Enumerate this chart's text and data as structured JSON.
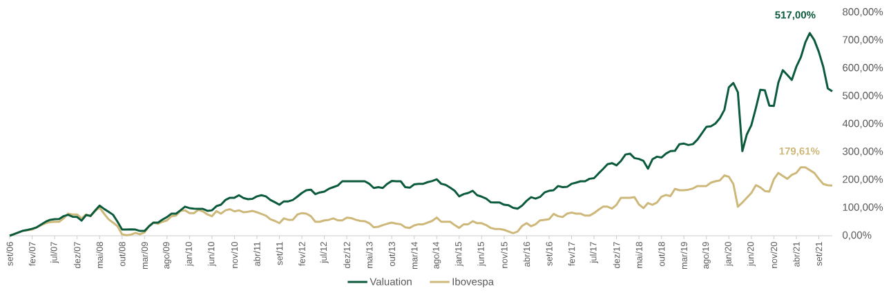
{
  "chart_data": {
    "type": "line",
    "x": [
      "2006-09",
      "2006-10",
      "2006-11",
      "2006-12",
      "2007-01",
      "2007-02",
      "2007-03",
      "2007-04",
      "2007-05",
      "2007-06",
      "2007-07",
      "2007-08",
      "2007-09",
      "2007-10",
      "2007-11",
      "2007-12",
      "2008-01",
      "2008-02",
      "2008-03",
      "2008-04",
      "2008-05",
      "2008-06",
      "2008-07",
      "2008-08",
      "2008-09",
      "2008-10",
      "2008-11",
      "2008-12",
      "2009-01",
      "2009-02",
      "2009-03",
      "2009-04",
      "2009-05",
      "2009-06",
      "2009-07",
      "2009-08",
      "2009-09",
      "2009-10",
      "2009-11",
      "2009-12",
      "2010-01",
      "2010-02",
      "2010-03",
      "2010-04",
      "2010-05",
      "2010-06",
      "2010-07",
      "2010-08",
      "2010-09",
      "2010-10",
      "2010-11",
      "2010-12",
      "2011-01",
      "2011-02",
      "2011-03",
      "2011-04",
      "2011-05",
      "2011-06",
      "2011-07",
      "2011-08",
      "2011-09",
      "2011-10",
      "2011-11",
      "2011-12",
      "2012-01",
      "2012-02",
      "2012-03",
      "2012-04",
      "2012-05",
      "2012-06",
      "2012-07",
      "2012-08",
      "2012-09",
      "2012-10",
      "2012-11",
      "2012-12",
      "2013-01",
      "2013-02",
      "2013-03",
      "2013-04",
      "2013-05",
      "2013-06",
      "2013-07",
      "2013-08",
      "2013-09",
      "2013-10",
      "2013-11",
      "2013-12",
      "2014-01",
      "2014-02",
      "2014-03",
      "2014-04",
      "2014-05",
      "2014-06",
      "2014-07",
      "2014-08",
      "2014-09",
      "2014-10",
      "2014-11",
      "2014-12",
      "2015-01",
      "2015-02",
      "2015-03",
      "2015-04",
      "2015-05",
      "2015-06",
      "2015-07",
      "2015-08",
      "2015-09",
      "2015-10",
      "2015-11",
      "2015-12",
      "2016-01",
      "2016-02",
      "2016-03",
      "2016-04",
      "2016-05",
      "2016-06",
      "2016-07",
      "2016-08",
      "2016-09",
      "2016-10",
      "2016-11",
      "2016-12",
      "2017-01",
      "2017-02",
      "2017-03",
      "2017-04",
      "2017-05",
      "2017-06",
      "2017-07",
      "2017-08",
      "2017-09",
      "2017-10",
      "2017-11",
      "2017-12",
      "2018-01",
      "2018-02",
      "2018-03",
      "2018-04",
      "2018-05",
      "2018-06",
      "2018-07",
      "2018-08",
      "2018-09",
      "2018-10",
      "2018-11",
      "2018-12",
      "2019-01",
      "2019-02",
      "2019-03",
      "2019-04",
      "2019-05",
      "2019-06",
      "2019-07",
      "2019-08",
      "2019-09",
      "2019-10",
      "2019-11",
      "2019-12",
      "2020-01",
      "2020-02",
      "2020-03",
      "2020-04",
      "2020-05",
      "2020-06",
      "2020-07",
      "2020-08",
      "2020-09",
      "2020-10",
      "2020-11",
      "2020-12",
      "2021-01",
      "2021-02",
      "2021-03",
      "2021-04",
      "2021-05",
      "2021-06",
      "2021-07",
      "2021-08",
      "2021-09",
      "2021-10",
      "2021-11",
      "2021-12"
    ],
    "series": [
      {
        "name": "Valuation",
        "color": "#0b5a3c",
        "values": [
          0,
          6,
          12,
          18,
          21,
          25,
          30,
          40,
          50,
          57,
          59,
          60,
          70,
          75,
          68,
          67,
          54,
          74,
          71,
          90,
          108,
          96,
          86,
          75,
          50,
          22,
          22,
          23,
          22,
          17,
          17,
          34,
          47,
          47,
          58,
          67,
          79,
          79,
          91,
          104,
          99,
          97,
          96,
          96,
          89,
          91,
          106,
          111,
          128,
          136,
          136,
          145,
          135,
          131,
          132,
          141,
          145,
          141,
          128,
          120,
          111,
          123,
          123,
          128,
          140,
          153,
          163,
          165,
          149,
          155,
          158,
          168,
          174,
          180,
          195,
          195,
          195,
          195,
          195,
          195,
          186,
          171,
          174,
          171,
          186,
          196,
          195,
          195,
          174,
          172,
          184,
          186,
          186,
          192,
          196,
          202,
          186,
          182,
          172,
          161,
          141,
          149,
          153,
          161,
          145,
          140,
          133,
          120,
          119,
          119,
          111,
          109,
          100,
          97,
          108,
          125,
          138,
          133,
          139,
          155,
          161,
          163,
          178,
          174,
          175,
          186,
          190,
          195,
          195,
          204,
          206,
          223,
          239,
          256,
          260,
          252,
          268,
          291,
          294,
          278,
          275,
          268,
          240,
          274,
          283,
          280,
          294,
          303,
          304,
          328,
          330,
          325,
          328,
          344,
          367,
          390,
          392,
          402,
          421,
          451,
          532,
          547,
          514,
          303,
          363,
          396,
          457,
          523,
          521,
          466,
          465,
          548,
          593,
          576,
          558,
          605,
          639,
          692,
          726,
          701,
          659,
          605,
          528,
          517
        ]
      },
      {
        "name": "Ibovespa",
        "color": "#cdb87a",
        "values": [
          0,
          6,
          12,
          18,
          20,
          22,
          30,
          38,
          45,
          49,
          50,
          50,
          62,
          79,
          76,
          76,
          62,
          76,
          70,
          89,
          101,
          79,
          59,
          47,
          34,
          5,
          2,
          4,
          10,
          5,
          12,
          34,
          47,
          43,
          50,
          55,
          70,
          72,
          89,
          91,
          81,
          81,
          93,
          87,
          76,
          70,
          88,
          79,
          91,
          95,
          87,
          91,
          84,
          86,
          89,
          84,
          78,
          72,
          59,
          53,
          45,
          62,
          57,
          57,
          76,
          81,
          79,
          70,
          50,
          50,
          55,
          57,
          62,
          55,
          55,
          65,
          63,
          57,
          53,
          52,
          45,
          30,
          32,
          38,
          43,
          47,
          43,
          41,
          30,
          28,
          37,
          41,
          41,
          47,
          53,
          65,
          50,
          50,
          50,
          38,
          28,
          41,
          41,
          52,
          45,
          45,
          38,
          28,
          24,
          24,
          21,
          15,
          9,
          15,
          35,
          45,
          34,
          41,
          55,
          57,
          59,
          78,
          70,
          67,
          79,
          83,
          79,
          79,
          72,
          72,
          81,
          93,
          104,
          104,
          97,
          111,
          136,
          136,
          136,
          138,
          112,
          99,
          117,
          111,
          119,
          140,
          146,
          142,
          168,
          163,
          163,
          165,
          169,
          178,
          178,
          178,
          190,
          195,
          198,
          216,
          211,
          185,
          104,
          119,
          136,
          153,
          181,
          173,
          160,
          158,
          202,
          225,
          214,
          204,
          218,
          225,
          245,
          245,
          235,
          225,
          204,
          185,
          181,
          179.61
        ]
      }
    ],
    "xlim": [
      "2006-09",
      "2021-12"
    ],
    "xticks": [
      {
        "value": "2006-09",
        "label": "set/06"
      },
      {
        "value": "2007-02",
        "label": "fev/07"
      },
      {
        "value": "2007-07",
        "label": "jul/07"
      },
      {
        "value": "2007-12",
        "label": "dez/07"
      },
      {
        "value": "2008-05",
        "label": "mai/08"
      },
      {
        "value": "2008-10",
        "label": "out/08"
      },
      {
        "value": "2009-03",
        "label": "mar/09"
      },
      {
        "value": "2009-08",
        "label": "ago/09"
      },
      {
        "value": "2010-01",
        "label": "jan/10"
      },
      {
        "value": "2010-06",
        "label": "jun/10"
      },
      {
        "value": "2010-11",
        "label": "nov/10"
      },
      {
        "value": "2011-04",
        "label": "abr/11"
      },
      {
        "value": "2011-09",
        "label": "set/11"
      },
      {
        "value": "2012-02",
        "label": "fev/12"
      },
      {
        "value": "2012-07",
        "label": "jul/12"
      },
      {
        "value": "2012-12",
        "label": "dez/12"
      },
      {
        "value": "2013-05",
        "label": "mai/13"
      },
      {
        "value": "2013-10",
        "label": "out/13"
      },
      {
        "value": "2014-03",
        "label": "mar/14"
      },
      {
        "value": "2014-08",
        "label": "ago/14"
      },
      {
        "value": "2015-01",
        "label": "jan/15"
      },
      {
        "value": "2015-06",
        "label": "jun/15"
      },
      {
        "value": "2015-11",
        "label": "nov/15"
      },
      {
        "value": "2016-04",
        "label": "abr/16"
      },
      {
        "value": "2016-09",
        "label": "set/16"
      },
      {
        "value": "2017-02",
        "label": "fev/17"
      },
      {
        "value": "2017-07",
        "label": "jul/17"
      },
      {
        "value": "2017-12",
        "label": "dez/17"
      },
      {
        "value": "2018-05",
        "label": "mai/18"
      },
      {
        "value": "2018-10",
        "label": "out/18"
      },
      {
        "value": "2019-03",
        "label": "mar/19"
      },
      {
        "value": "2019-08",
        "label": "ago/19"
      },
      {
        "value": "2020-01",
        "label": "jan/20"
      },
      {
        "value": "2020-06",
        "label": "jun/20"
      },
      {
        "value": "2020-11",
        "label": "nov/20"
      },
      {
        "value": "2021-04",
        "label": "abr/21"
      },
      {
        "value": "2021-09",
        "label": "set/21"
      }
    ],
    "ylim": [
      0,
      800
    ],
    "yticks": [
      {
        "value": 0,
        "label": "0,00%"
      },
      {
        "value": 100,
        "label": "100,00%"
      },
      {
        "value": 200,
        "label": "200,00%"
      },
      {
        "value": 300,
        "label": "300,00%"
      },
      {
        "value": 400,
        "label": "400,00%"
      },
      {
        "value": 500,
        "label": "500,00%"
      },
      {
        "value": 600,
        "label": "600,00%"
      },
      {
        "value": 700,
        "label": "700,00%"
      },
      {
        "value": 800,
        "label": "800,00%"
      }
    ],
    "annotations": [
      "517,00%",
      "179,61%"
    ],
    "grid": false,
    "legend": "bottom",
    "marker": "none",
    "line_style": "solid"
  }
}
